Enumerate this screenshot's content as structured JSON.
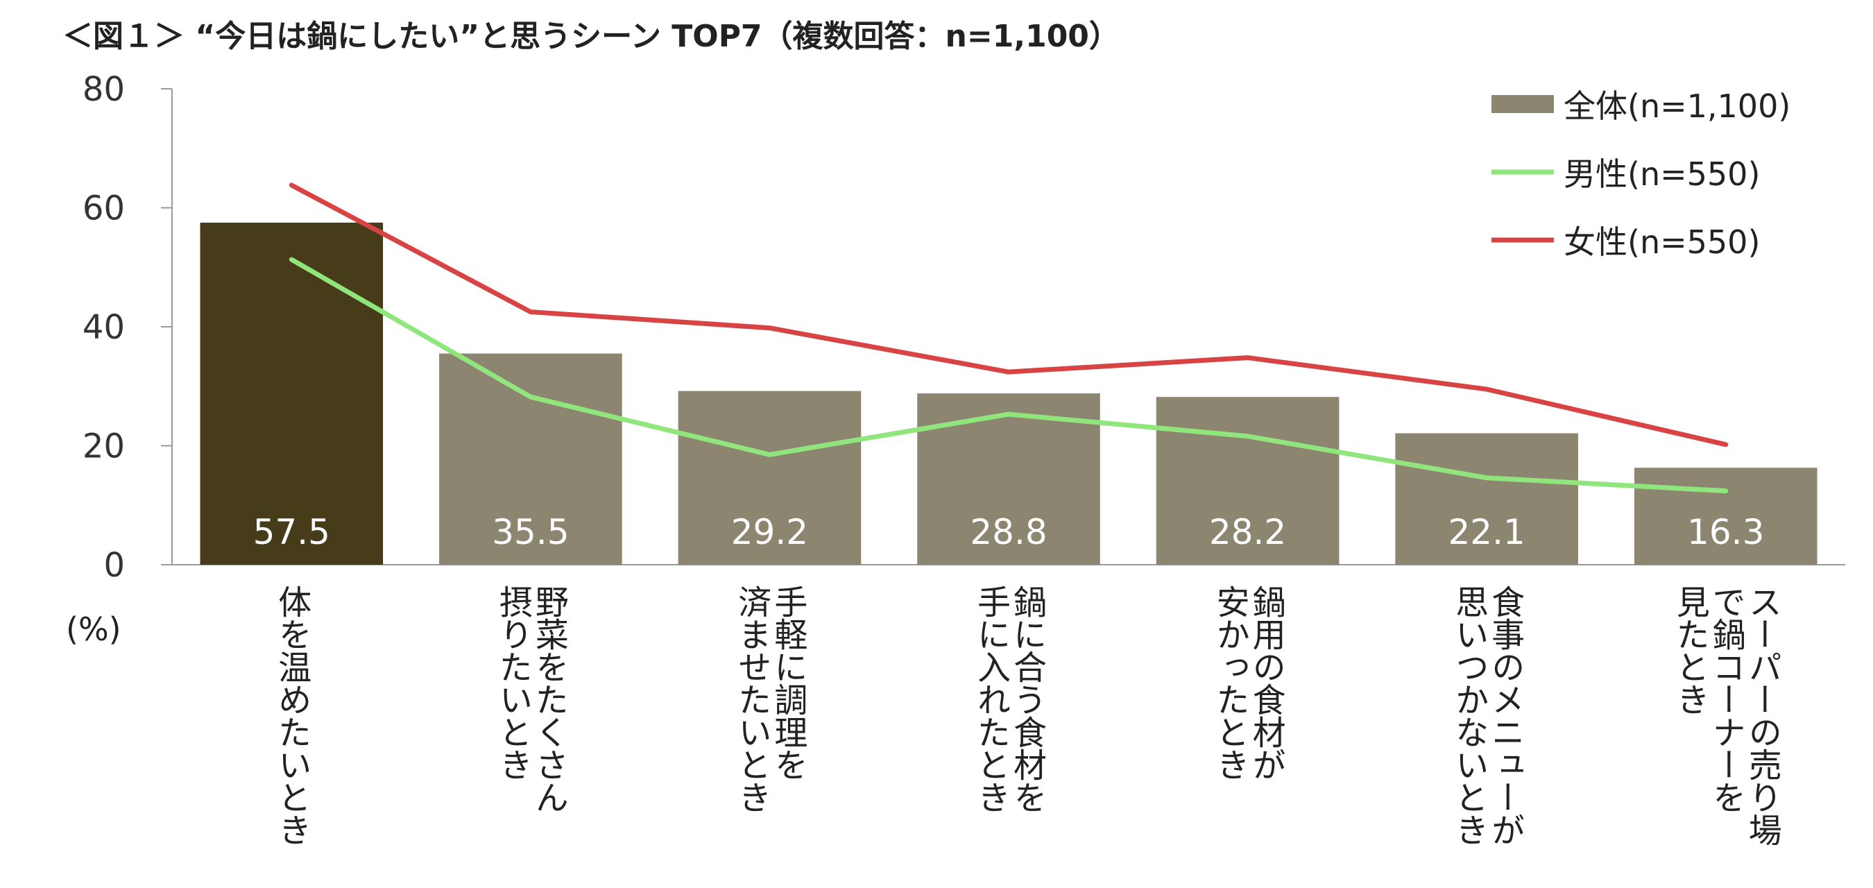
{
  "title": "＜図１＞ “今日は鍋にしたい”と思うシーン TOP7（複数回答：n=1,100）",
  "y_unit": "(%)",
  "colors": {
    "bar_first": "#473c1a",
    "bar": "#8c8570",
    "male": "#90e67d",
    "female": "#d84343",
    "axis": "#999999"
  },
  "chart_data": {
    "type": "bar",
    "ylim": [
      0,
      80
    ],
    "yticks": [
      "0",
      "20",
      "40",
      "60",
      "80"
    ],
    "grid": false,
    "legend_position": "top-right",
    "categories": [
      [
        "体を温めたいとき"
      ],
      [
        "野菜をたくさん",
        "摂りたいとき"
      ],
      [
        "手軽に調理を",
        "済ませたいとき"
      ],
      [
        "鍋に合う食材を",
        "手に入れたとき"
      ],
      [
        "鍋用の食材が",
        "安かったとき"
      ],
      [
        "食事のメニューが",
        "思いつかないとき"
      ],
      [
        "スーパーの売り場",
        "で鍋コーナーを",
        "見たとき"
      ]
    ],
    "series": [
      {
        "name": "全体(n=1,100)",
        "type": "bar",
        "values": [
          57.5,
          35.5,
          29.2,
          28.8,
          28.2,
          22.1,
          16.3
        ],
        "labels": [
          "57.5",
          "35.5",
          "29.2",
          "28.8",
          "28.2",
          "22.1",
          "16.3"
        ]
      },
      {
        "name": "男性(n=550)",
        "type": "line",
        "values": [
          51.3,
          28.2,
          18.5,
          25.3,
          21.6,
          14.6,
          12.4
        ]
      },
      {
        "name": "女性(n=550)",
        "type": "line",
        "values": [
          63.8,
          42.5,
          39.8,
          32.4,
          34.8,
          29.5,
          20.2
        ]
      }
    ]
  }
}
